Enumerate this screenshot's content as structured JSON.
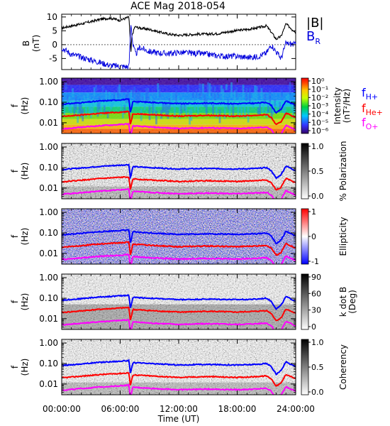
{
  "chart_data": [
    {
      "type": "line",
      "title": "ACE Mag 2018-054",
      "ylabel": "B",
      "yunit": "(nT)",
      "ylim": [
        -9,
        11
      ],
      "yticks": [
        10,
        5,
        0,
        -5
      ],
      "legend": {
        "placement": "right",
        "entries": [
          "|B|",
          "B_R"
        ]
      },
      "series": [
        {
          "name": "|B|",
          "color": "#000000",
          "points": [
            [
              0,
              6
            ],
            [
              1,
              6.8
            ],
            [
              2,
              7.5
            ],
            [
              3,
              8.3
            ],
            [
              4,
              9.2
            ],
            [
              5,
              9.6
            ],
            [
              6,
              8.8
            ],
            [
              6.9,
              10
            ],
            [
              7.1,
              -3
            ],
            [
              7.2,
              3
            ],
            [
              7.5,
              6.5
            ],
            [
              8,
              6
            ],
            [
              9,
              5.5
            ],
            [
              10,
              4.6
            ],
            [
              11,
              3.8
            ],
            [
              12,
              3.4
            ],
            [
              13,
              3.6
            ],
            [
              14,
              3.8
            ],
            [
              15,
              3.8
            ],
            [
              16,
              4
            ],
            [
              17,
              4.6
            ],
            [
              18,
              5.1
            ],
            [
              19,
              5.5
            ],
            [
              20,
              6
            ],
            [
              21,
              6.8
            ],
            [
              21.5,
              4.5
            ],
            [
              22,
              2
            ],
            [
              22.5,
              3
            ],
            [
              23,
              7.5
            ],
            [
              24,
              4.5
            ]
          ]
        },
        {
          "name": "B_R",
          "color": "#0000dd",
          "points": [
            [
              0,
              -1
            ],
            [
              1,
              -3.5
            ],
            [
              2,
              -4.5
            ],
            [
              3,
              -5.5
            ],
            [
              4,
              -6.5
            ],
            [
              5,
              -7.5
            ],
            [
              6,
              -7.8
            ],
            [
              6.9,
              -8
            ],
            [
              7.1,
              8
            ],
            [
              7.3,
              0
            ],
            [
              7.6,
              -3.5
            ],
            [
              8,
              -1
            ],
            [
              9,
              -2.5
            ],
            [
              10,
              -3
            ],
            [
              11,
              -3.2
            ],
            [
              12,
              -2.8
            ],
            [
              13,
              -3
            ],
            [
              14,
              -3.2
            ],
            [
              15,
              -3.5
            ],
            [
              16,
              -4
            ],
            [
              17,
              -4.2
            ],
            [
              18,
              -4.2
            ],
            [
              19,
              -4.6
            ],
            [
              20,
              -4.4
            ],
            [
              21,
              -3
            ],
            [
              21.5,
              0
            ],
            [
              22,
              -2.5
            ],
            [
              22.5,
              -5
            ],
            [
              23,
              0.5
            ],
            [
              24,
              0
            ]
          ]
        }
      ]
    },
    {
      "type": "heatmap",
      "ylabel": "f",
      "yunit": "(Hz)",
      "yscale": "log",
      "ylim": [
        0.003,
        1.5
      ],
      "yticks": [
        "1.00",
        "0.10",
        "0.01"
      ],
      "colorbar": {
        "label": "Intensity",
        "unit": "(nT²/Hz)",
        "ticks": [
          "10⁰",
          "10⁻¹",
          "10⁻²",
          "10⁻³",
          "10⁻⁴",
          "10⁻⁵",
          "10⁻⁶"
        ],
        "colormap": "rainbow",
        "range": [
          -6.5,
          0
        ]
      },
      "legend": {
        "placement": "right",
        "entries": [
          "f_H+",
          "f_He+",
          "f_O+"
        ]
      }
    },
    {
      "type": "heatmap",
      "ylabel": "f",
      "yunit": "(Hz)",
      "yscale": "log",
      "ylim": [
        0.003,
        1.5
      ],
      "yticks": [
        "1.00",
        "0.10",
        "0.01"
      ],
      "colorbar": {
        "label": "% Polarization",
        "ticks": [
          "1.0",
          "0.5",
          "0.0"
        ],
        "colormap": "gray",
        "range": [
          0,
          1
        ]
      }
    },
    {
      "type": "heatmap",
      "ylabel": "f",
      "yunit": "(Hz)",
      "yscale": "log",
      "ylim": [
        0.003,
        1.5
      ],
      "yticks": [
        "1.00",
        "0.10",
        "0.01"
      ],
      "colorbar": {
        "label": "Ellipticity",
        "ticks": [
          "1",
          "0",
          "-1"
        ],
        "colormap": "blue-white-red",
        "range": [
          -1,
          1
        ]
      }
    },
    {
      "type": "heatmap",
      "ylabel": "f",
      "yunit": "(Hz)",
      "yscale": "log",
      "ylim": [
        0.003,
        1.5
      ],
      "yticks": [
        "1.00",
        "0.10",
        "0.01"
      ],
      "colorbar": {
        "label": "k dot B",
        "unit": "(Deg)",
        "ticks": [
          "90",
          "60",
          "30",
          "0"
        ],
        "colormap": "gray",
        "range": [
          0,
          90
        ]
      }
    },
    {
      "type": "heatmap",
      "ylabel": "f",
      "yunit": "(Hz)",
      "yscale": "log",
      "ylim": [
        0.003,
        1.5
      ],
      "yticks": [
        "1.00",
        "0.10",
        "0.01"
      ],
      "colorbar": {
        "label": "Coherency",
        "ticks": [
          "1.0",
          "0.5",
          "0.0"
        ],
        "colormap": "gray",
        "range": [
          0,
          1
        ]
      }
    }
  ],
  "gyro_lines": [
    {
      "name": "f_H+",
      "color": "#0000ff",
      "points": [
        [
          0,
          0.08
        ],
        [
          2,
          0.095
        ],
        [
          4,
          0.115
        ],
        [
          6,
          0.13
        ],
        [
          6.9,
          0.14
        ],
        [
          7.05,
          0.03
        ],
        [
          7.3,
          0.11
        ],
        [
          9,
          0.1
        ],
        [
          12,
          0.085
        ],
        [
          15,
          0.09
        ],
        [
          18,
          0.085
        ],
        [
          20,
          0.09
        ],
        [
          21,
          0.1
        ],
        [
          21.5,
          0.07
        ],
        [
          22,
          0.03
        ],
        [
          22.5,
          0.045
        ],
        [
          23,
          0.12
        ],
        [
          24,
          0.07
        ]
      ]
    },
    {
      "name": "f_He+",
      "color": "#ff0000",
      "points": [
        [
          0,
          0.02
        ],
        [
          2,
          0.024
        ],
        [
          4,
          0.029
        ],
        [
          6,
          0.033
        ],
        [
          6.9,
          0.035
        ],
        [
          7.05,
          0.008
        ],
        [
          7.3,
          0.028
        ],
        [
          9,
          0.025
        ],
        [
          12,
          0.021
        ],
        [
          15,
          0.023
        ],
        [
          18,
          0.021
        ],
        [
          20,
          0.023
        ],
        [
          21,
          0.025
        ],
        [
          21.5,
          0.018
        ],
        [
          22,
          0.008
        ],
        [
          22.5,
          0.011
        ],
        [
          23,
          0.03
        ],
        [
          24,
          0.018
        ]
      ]
    },
    {
      "name": "f_O+",
      "color": "#ff00ff",
      "points": [
        [
          0,
          0.005
        ],
        [
          2,
          0.006
        ],
        [
          4,
          0.0072
        ],
        [
          6,
          0.0082
        ],
        [
          6.9,
          0.0088
        ],
        [
          7.05,
          0.002
        ],
        [
          7.3,
          0.007
        ],
        [
          9,
          0.0062
        ],
        [
          12,
          0.0053
        ],
        [
          15,
          0.0057
        ],
        [
          18,
          0.0053
        ],
        [
          20,
          0.0057
        ],
        [
          21,
          0.0062
        ],
        [
          21.5,
          0.0045
        ],
        [
          22,
          0.002
        ],
        [
          22.5,
          0.0028
        ],
        [
          23,
          0.0075
        ],
        [
          24,
          0.0045
        ]
      ]
    }
  ],
  "xaxis": {
    "label": "Time (UT)",
    "range": [
      0,
      24
    ],
    "ticks": [
      {
        "value": 0,
        "label": "00:00:00"
      },
      {
        "value": 6,
        "label": "06:00:00"
      },
      {
        "value": 12,
        "label": "12:00:00"
      },
      {
        "value": 18,
        "label": "18:00:00"
      },
      {
        "value": 24,
        "label": "24:00:00"
      }
    ]
  }
}
